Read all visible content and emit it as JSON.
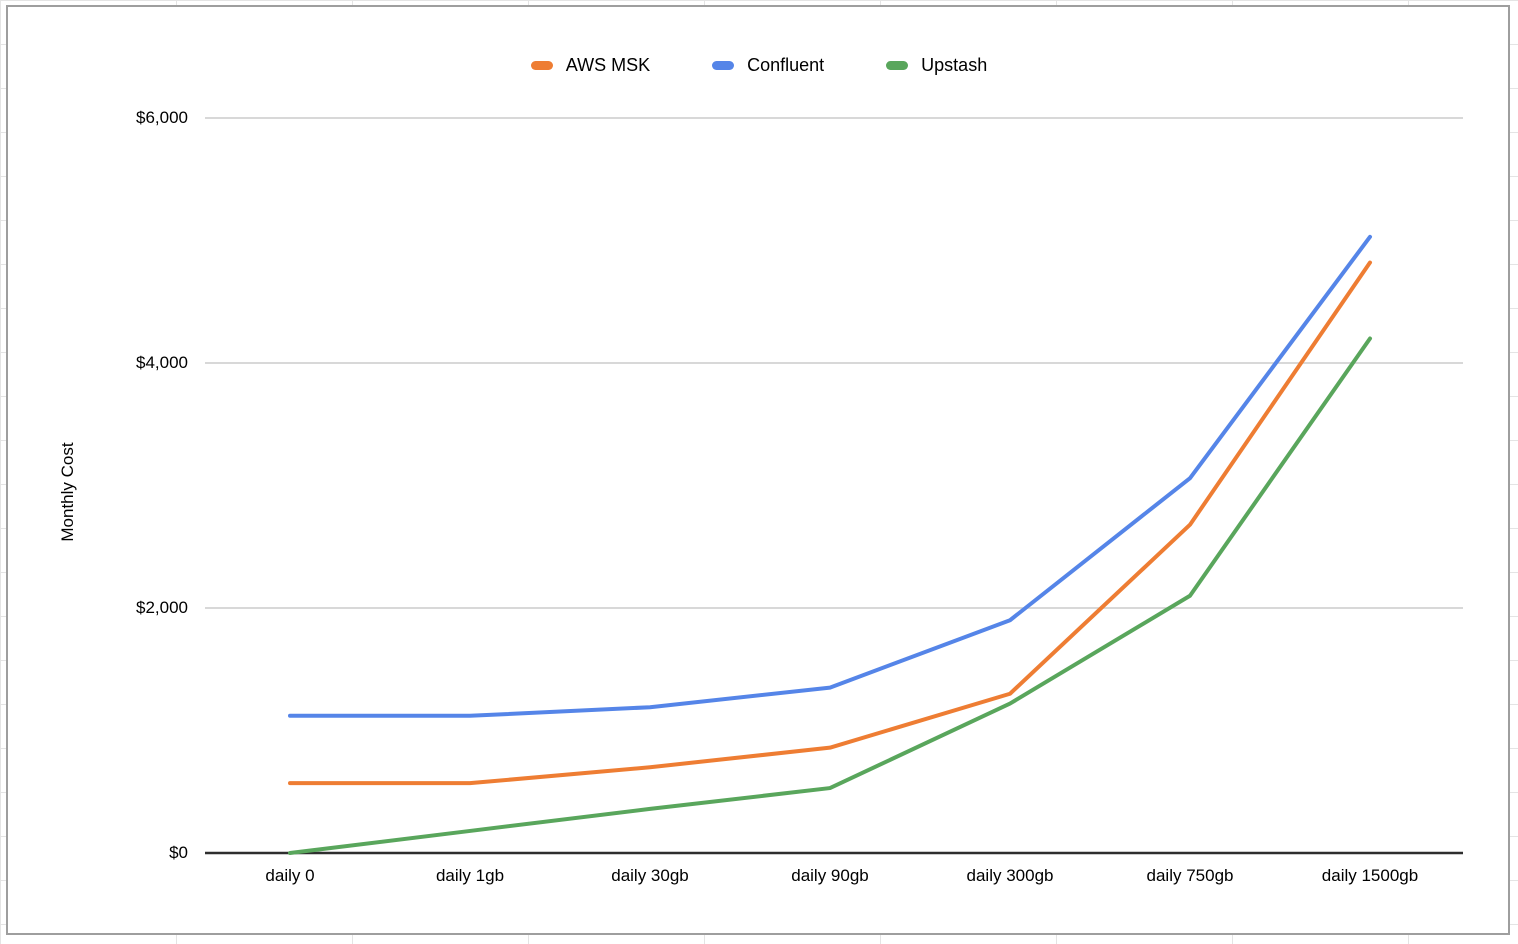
{
  "page": {
    "background_color": "#ffffff",
    "spreadsheet_grid_color": "#e4e4e4",
    "card_border_color": "#9e9e9e"
  },
  "chart_data": {
    "type": "line",
    "title": "",
    "xlabel": "",
    "ylabel": "Monthly Cost",
    "categories": [
      "daily 0",
      "daily 1gb",
      "daily 30gb",
      "daily 90gb",
      "daily 300gb",
      "daily 750gb",
      "daily 1500gb"
    ],
    "series": [
      {
        "name": "AWS MSK",
        "color": "#ee7d33",
        "values": [
          570,
          570,
          700,
          860,
          1300,
          2680,
          4820
        ]
      },
      {
        "name": "Confluent",
        "color": "#5585e8",
        "values": [
          1120,
          1120,
          1190,
          1350,
          1900,
          3060,
          5030
        ]
      },
      {
        "name": "Upstash",
        "color": "#59a65c",
        "values": [
          0,
          180,
          360,
          530,
          1220,
          2100,
          4200
        ]
      }
    ],
    "ylim": [
      0,
      6000
    ],
    "y_ticks": [
      0,
      2000,
      4000,
      6000
    ],
    "y_tick_labels": [
      "$0",
      "$2,000",
      "$4,000",
      "$6,000"
    ],
    "grid": "horizontal-only",
    "legend_position": "top-center",
    "gridline_color": "#cccccc",
    "axis_line_color": "#2e2e2e"
  }
}
